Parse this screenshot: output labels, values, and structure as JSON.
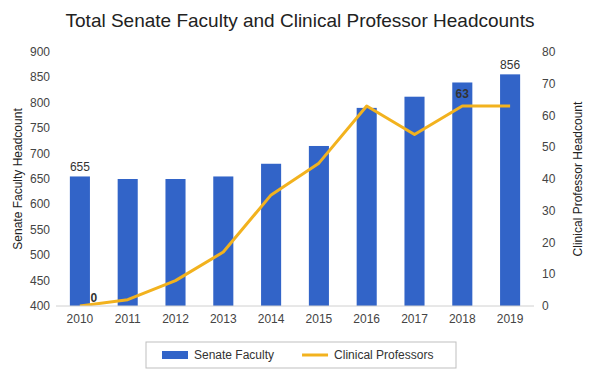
{
  "chart_data": {
    "type": "bar",
    "title": "Total Senate Faculty and Clinical Professor Headcounts",
    "y_label": "Senate Faculty Headcount",
    "y2_label": "Clinical Professor Headcount",
    "categories": [
      "2010",
      "2011",
      "2012",
      "2013",
      "2014",
      "2015",
      "2016",
      "2017",
      "2018",
      "2019"
    ],
    "series": [
      {
        "name": "Senate Faculty",
        "type": "bar",
        "color": "#3264c8",
        "values": [
          655,
          650,
          650,
          655,
          680,
          715,
          790,
          812,
          840,
          856
        ],
        "value_labels": [
          "655",
          null,
          null,
          null,
          null,
          null,
          null,
          null,
          null,
          "856"
        ]
      },
      {
        "name": "Clinical Professors",
        "type": "line",
        "axis": "y2",
        "color": "#f2b21e",
        "values": [
          0,
          2,
          8,
          17,
          35,
          45,
          63,
          54,
          63,
          63
        ],
        "value_labels": [
          "0",
          null,
          null,
          null,
          null,
          null,
          null,
          null,
          "63",
          null
        ]
      }
    ],
    "ylim": [
      400,
      900
    ],
    "yticks": [
      400,
      450,
      500,
      550,
      600,
      650,
      700,
      750,
      800,
      850,
      900
    ],
    "y2lim": [
      0,
      80
    ],
    "y2ticks": [
      0,
      10,
      20,
      30,
      40,
      50,
      60,
      70,
      80
    ],
    "grid": false,
    "legend": "bottom",
    "data_labels": true
  }
}
